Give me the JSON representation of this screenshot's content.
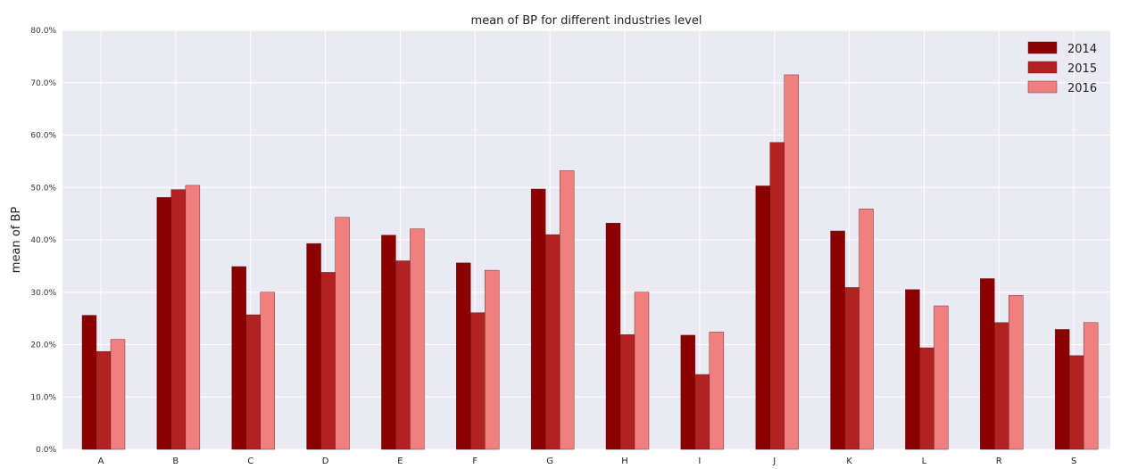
{
  "chart_data": {
    "type": "bar",
    "title": "mean of BP for different industries level",
    "xlabel": "",
    "ylabel": "mean of BP",
    "ylim": [
      0,
      0.8
    ],
    "yticks": [
      "0.0%",
      "10.0%",
      "20.0%",
      "30.0%",
      "40.0%",
      "50.0%",
      "60.0%",
      "70.0%",
      "80.0%"
    ],
    "grid": true,
    "legend_position": "top-right",
    "categories": [
      "A",
      "B",
      "C",
      "D",
      "E",
      "F",
      "G",
      "H",
      "I",
      "J",
      "K",
      "L",
      "R",
      "S"
    ],
    "series": [
      {
        "name": "2014",
        "color": "#8b0000",
        "values": [
          0.256,
          0.481,
          0.349,
          0.393,
          0.409,
          0.356,
          0.497,
          0.432,
          0.218,
          0.503,
          0.417,
          0.305,
          0.326,
          0.229
        ]
      },
      {
        "name": "2015",
        "color": "#b22222",
        "values": [
          0.187,
          0.496,
          0.257,
          0.338,
          0.36,
          0.261,
          0.41,
          0.219,
          0.143,
          0.586,
          0.309,
          0.194,
          0.242,
          0.179
        ]
      },
      {
        "name": "2016",
        "color": "#f08080",
        "values": [
          0.21,
          0.504,
          0.3,
          0.443,
          0.421,
          0.342,
          0.532,
          0.3,
          0.224,
          0.715,
          0.459,
          0.274,
          0.294,
          0.242
        ]
      }
    ]
  }
}
